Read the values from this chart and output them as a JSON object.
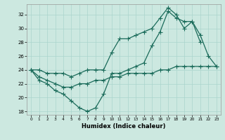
{
  "xlabel": "Humidex (Indice chaleur)",
  "background_color": "#cce8e0",
  "grid_color": "#aad4cc",
  "line_color": "#1a6b5a",
  "x_values": [
    0,
    1,
    2,
    3,
    4,
    5,
    6,
    7,
    8,
    9,
    10,
    11,
    12,
    13,
    14,
    15,
    16,
    17,
    18,
    19,
    20,
    21,
    22,
    23
  ],
  "line1_y": [
    24.0,
    24.0,
    23.5,
    23.5,
    23.5,
    23.0,
    23.5,
    24.0,
    24.0,
    24.0,
    26.5,
    28.5,
    28.5,
    29.0,
    29.5,
    30.0,
    31.5,
    33.0,
    32.0,
    30.0,
    31.0,
    29.0,
    26.0,
    24.5
  ],
  "line2_y": [
    24.0,
    22.5,
    22.0,
    21.0,
    20.5,
    19.5,
    18.5,
    18.0,
    18.5,
    20.5,
    23.5,
    23.5,
    24.0,
    24.5,
    25.0,
    27.5,
    29.5,
    32.5,
    31.5,
    31.0,
    31.0,
    28.0,
    null,
    null
  ],
  "line3_y": [
    24.0,
    23.0,
    22.5,
    22.0,
    21.5,
    21.5,
    22.0,
    22.0,
    22.5,
    22.5,
    23.0,
    23.0,
    23.5,
    23.5,
    23.5,
    23.5,
    24.0,
    24.0,
    24.5,
    24.5,
    24.5,
    24.5,
    24.5,
    24.5
  ],
  "xlim": [
    -0.5,
    23.5
  ],
  "ylim": [
    17.5,
    33.5
  ],
  "yticks": [
    18,
    20,
    22,
    24,
    26,
    28,
    30,
    32
  ],
  "xticks": [
    0,
    1,
    2,
    3,
    4,
    5,
    6,
    7,
    8,
    9,
    10,
    11,
    12,
    13,
    14,
    15,
    16,
    17,
    18,
    19,
    20,
    21,
    22,
    23
  ],
  "marker": "+",
  "markersize": 4,
  "linewidth": 0.9,
  "xlabel_fontsize": 6.0,
  "xtick_fontsize": 4.2,
  "ytick_fontsize": 5.0
}
